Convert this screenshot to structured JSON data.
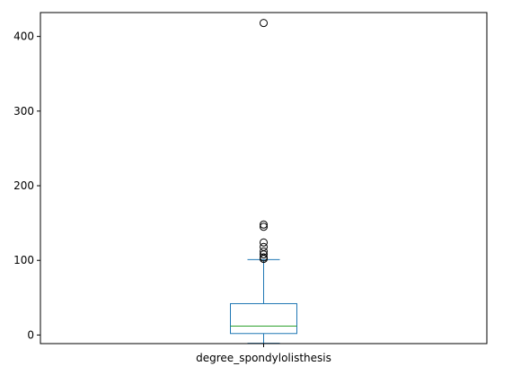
{
  "chart_data": {
    "type": "box",
    "title": "",
    "xlabel": "",
    "ylabel": "",
    "categories": [
      "degree_spondylolisthesis"
    ],
    "ylim": [
      -11.5,
      432
    ],
    "yticks": [
      0,
      100,
      200,
      300,
      400
    ],
    "grid": false,
    "box": {
      "whisker_low": -11,
      "q1": 2,
      "median": 12,
      "q3": 42,
      "whisker_high": 101,
      "outliers": [
        102,
        104,
        108,
        112,
        118,
        124,
        145,
        148,
        418
      ]
    },
    "colors": {
      "box": "#1f77b4",
      "median": "#2ca02c",
      "outlier": "#000000"
    }
  }
}
